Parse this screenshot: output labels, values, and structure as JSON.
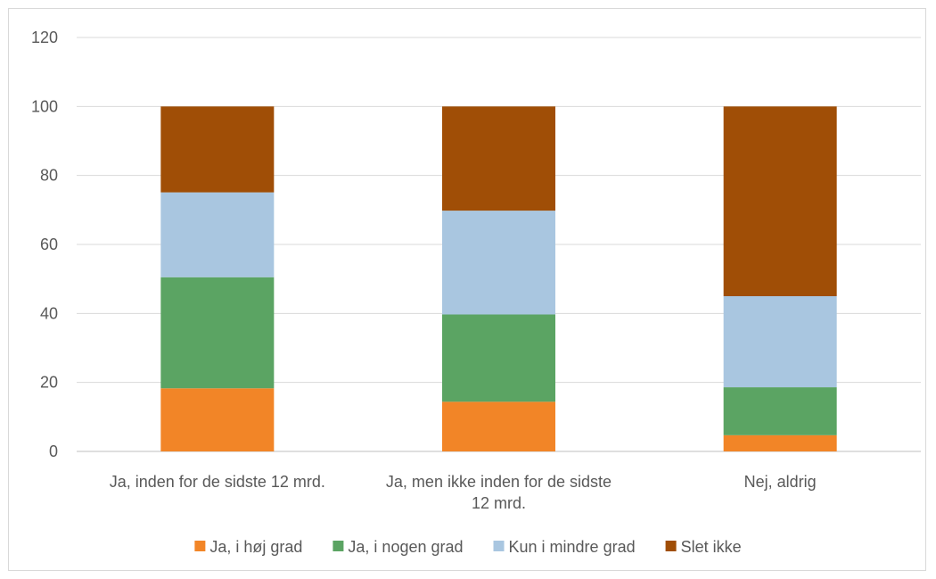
{
  "chart_data": {
    "type": "bar",
    "stacked": true,
    "categories": [
      [
        "Ja, inden for de sidste 12 mrd."
      ],
      [
        "Ja, men ikke inden for de sidste",
        "12 mrd."
      ],
      [
        "Nej, aldrig"
      ]
    ],
    "series": [
      {
        "name": "Ja, i høj grad",
        "color": "#F28527",
        "values": [
          18.3,
          14.4,
          4.7
        ]
      },
      {
        "name": "Ja, i nogen grad",
        "color": "#5BA463",
        "values": [
          32.2,
          25.3,
          13.9
        ]
      },
      {
        "name": "Kun i mindre grad",
        "color": "#A9C6E0",
        "values": [
          24.6,
          30.1,
          26.4
        ]
      },
      {
        "name": "Slet ikke",
        "color": "#A04E06",
        "values": [
          24.9,
          30.2,
          55.0
        ]
      }
    ],
    "yticks": [
      "0",
      "20",
      "40",
      "60",
      "80",
      "100",
      "120"
    ],
    "ylim": [
      0,
      120
    ],
    "grid": true,
    "legend_position": "bottom"
  }
}
